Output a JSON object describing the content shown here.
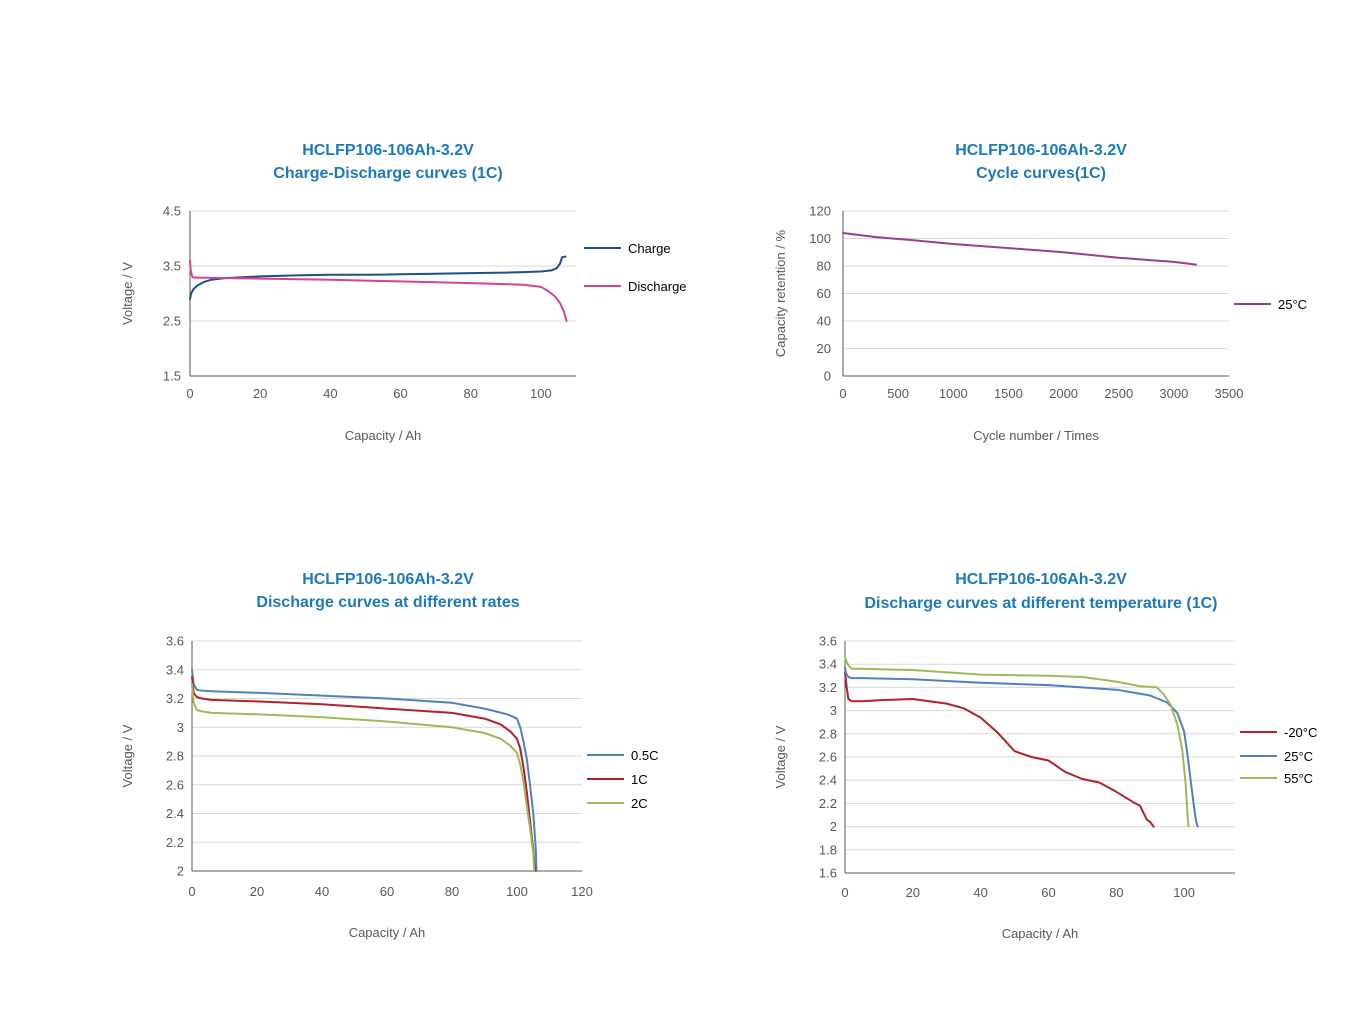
{
  "chart_data": [
    {
      "type": "line",
      "title": "HCLFP106-106Ah-3.2V",
      "subtitle": "Charge-Discharge curves (1C)",
      "xlabel": "Capacity / Ah",
      "ylabel": "Voltage / V",
      "xlim": [
        0,
        110
      ],
      "ylim": [
        1.5,
        4.5
      ],
      "xticks": [
        0,
        20,
        40,
        60,
        80,
        100
      ],
      "yticks": [
        1.5,
        2.5,
        3.5,
        4.5
      ],
      "ytick_labels": [
        "1.5",
        "2.5",
        "3.5",
        "4.5"
      ],
      "grid": true,
      "legend_position": "right",
      "series": [
        {
          "name": "Charge",
          "color": "#1f4e8c",
          "x": [
            0,
            0.3,
            1,
            2,
            4,
            6,
            10,
            20,
            30,
            40,
            50,
            60,
            70,
            80,
            90,
            95,
            100,
            103,
            104.5,
            105.5,
            106,
            107
          ],
          "y": [
            2.9,
            3.0,
            3.08,
            3.14,
            3.21,
            3.25,
            3.28,
            3.31,
            3.33,
            3.34,
            3.34,
            3.35,
            3.36,
            3.37,
            3.38,
            3.39,
            3.4,
            3.42,
            3.46,
            3.55,
            3.66,
            3.67
          ]
        },
        {
          "name": "Discharge",
          "color": "#d2468c",
          "x": [
            0,
            0.2,
            0.6,
            1,
            3,
            10,
            20,
            40,
            60,
            80,
            95,
            100,
            102,
            104,
            105.5,
            106.5,
            107.3
          ],
          "y": [
            3.6,
            3.42,
            3.31,
            3.29,
            3.29,
            3.28,
            3.27,
            3.25,
            3.22,
            3.19,
            3.16,
            3.12,
            3.05,
            2.95,
            2.82,
            2.68,
            2.5
          ]
        }
      ]
    },
    {
      "type": "line",
      "title": "HCLFP106-106Ah-3.2V",
      "subtitle": "Cycle curves(1C)",
      "xlabel": "Cycle number / Times",
      "ylabel": "Capacity retention / %",
      "xlim": [
        0,
        3500
      ],
      "ylim": [
        0,
        120
      ],
      "xticks": [
        0,
        500,
        1000,
        1500,
        2000,
        2500,
        3000,
        3500
      ],
      "yticks": [
        0,
        20,
        40,
        60,
        80,
        100,
        120
      ],
      "ytick_labels": [
        "0",
        "20",
        "40",
        "60",
        "80",
        "100",
        "120"
      ],
      "grid": true,
      "legend_position": "right",
      "series": [
        {
          "name": "25°C",
          "color": "#9b3d8f",
          "x": [
            0,
            100,
            300,
            600,
            1000,
            1500,
            2000,
            2500,
            3000,
            3200
          ],
          "y": [
            104,
            103,
            101,
            99,
            96,
            93,
            90,
            86,
            83,
            81
          ]
        }
      ]
    },
    {
      "type": "line",
      "title": "HCLFP106-106Ah-3.2V",
      "subtitle": "Discharge curves at different rates",
      "xlabel": "Capacity / Ah",
      "ylabel": "Voltage / V",
      "xlim": [
        0,
        120
      ],
      "ylim": [
        2,
        3.6
      ],
      "xticks": [
        0,
        20,
        40,
        60,
        80,
        100,
        120
      ],
      "yticks": [
        2,
        2.2,
        2.4,
        2.6,
        2.8,
        3,
        3.2,
        3.4,
        3.6
      ],
      "ytick_labels": [
        "2",
        "2.2",
        "2.4",
        "2.6",
        "2.8",
        "3",
        "3.2",
        "3.4",
        "3.6"
      ],
      "grid": true,
      "legend_position": "right",
      "series": [
        {
          "name": "0.5C",
          "color": "#4f81bd",
          "x": [
            0,
            0.5,
            1.5,
            3,
            6,
            20,
            40,
            60,
            80,
            90,
            97,
            100,
            101,
            102,
            103,
            104,
            105,
            105.8,
            106
          ],
          "y": [
            3.4,
            3.3,
            3.26,
            3.255,
            3.25,
            3.24,
            3.22,
            3.2,
            3.17,
            3.13,
            3.09,
            3.06,
            3.0,
            2.9,
            2.78,
            2.6,
            2.4,
            2.15,
            2.0
          ]
        },
        {
          "name": "1C",
          "color": "#b22029",
          "x": [
            0,
            0.5,
            1.5,
            3,
            6,
            20,
            40,
            60,
            80,
            90,
            95,
            98,
            100,
            101,
            102,
            103,
            104,
            105,
            105.5
          ],
          "y": [
            3.35,
            3.24,
            3.21,
            3.2,
            3.19,
            3.18,
            3.16,
            3.13,
            3.1,
            3.06,
            3.02,
            2.97,
            2.92,
            2.85,
            2.72,
            2.55,
            2.35,
            2.15,
            2.0
          ]
        },
        {
          "name": "2C",
          "color": "#9bbb59",
          "x": [
            0,
            0.5,
            1.5,
            3,
            6,
            20,
            40,
            60,
            80,
            90,
            95,
            98,
            100,
            101,
            102,
            103,
            104,
            105,
            105.3
          ],
          "y": [
            3.3,
            3.17,
            3.12,
            3.11,
            3.1,
            3.09,
            3.07,
            3.04,
            3.0,
            2.96,
            2.92,
            2.87,
            2.82,
            2.74,
            2.62,
            2.45,
            2.3,
            2.12,
            2.0
          ]
        }
      ]
    },
    {
      "type": "line",
      "title": "HCLFP106-106Ah-3.2V",
      "subtitle": "Discharge curves at different temperature (1C)",
      "xlabel": "Capacity / Ah",
      "ylabel": "Voltage / V",
      "xlim": [
        0,
        115
      ],
      "ylim": [
        1.6,
        3.6
      ],
      "xticks": [
        0,
        20,
        40,
        60,
        80,
        100
      ],
      "yticks": [
        1.6,
        1.8,
        2,
        2.2,
        2.4,
        2.6,
        2.8,
        3,
        3.2,
        3.4,
        3.6
      ],
      "ytick_labels": [
        "1.6",
        "1.8",
        "2",
        "2.2",
        "2.4",
        "2.6",
        "2.8",
        "3",
        "3.2",
        "3.4",
        "3.6"
      ],
      "grid": true,
      "legend_position": "right",
      "series": [
        {
          "name": "-20°C",
          "color": "#b22029",
          "x": [
            0,
            0.5,
            1,
            2,
            5,
            10,
            20,
            30,
            35,
            40,
            45,
            50,
            55,
            60,
            65,
            70,
            75,
            80,
            85,
            87,
            88,
            89,
            90,
            91
          ],
          "y": [
            3.33,
            3.2,
            3.1,
            3.08,
            3.08,
            3.09,
            3.1,
            3.06,
            3.02,
            2.94,
            2.81,
            2.65,
            2.6,
            2.57,
            2.47,
            2.41,
            2.38,
            2.3,
            2.21,
            2.18,
            2.12,
            2.06,
            2.04,
            2.0
          ]
        },
        {
          "name": "25°C",
          "color": "#4f81bd",
          "x": [
            0,
            0.3,
            1,
            2,
            5,
            20,
            40,
            60,
            80,
            90,
            95,
            98,
            100,
            101,
            102,
            103,
            103.5,
            104
          ],
          "y": [
            3.37,
            3.32,
            3.29,
            3.28,
            3.28,
            3.27,
            3.24,
            3.22,
            3.18,
            3.13,
            3.07,
            2.98,
            2.82,
            2.62,
            2.38,
            2.15,
            2.05,
            2.0
          ]
        },
        {
          "name": "55°C",
          "color": "#9bbb59",
          "x": [
            0,
            0.3,
            1,
            2,
            5,
            20,
            40,
            60,
            70,
            80,
            87,
            92,
            94,
            96,
            98,
            99.5,
            100.5,
            101,
            101.3
          ],
          "y": [
            3.47,
            3.43,
            3.39,
            3.36,
            3.36,
            3.35,
            3.31,
            3.3,
            3.29,
            3.25,
            3.21,
            3.2,
            3.14,
            3.05,
            2.88,
            2.65,
            2.35,
            2.1,
            2.0
          ]
        }
      ]
    }
  ]
}
